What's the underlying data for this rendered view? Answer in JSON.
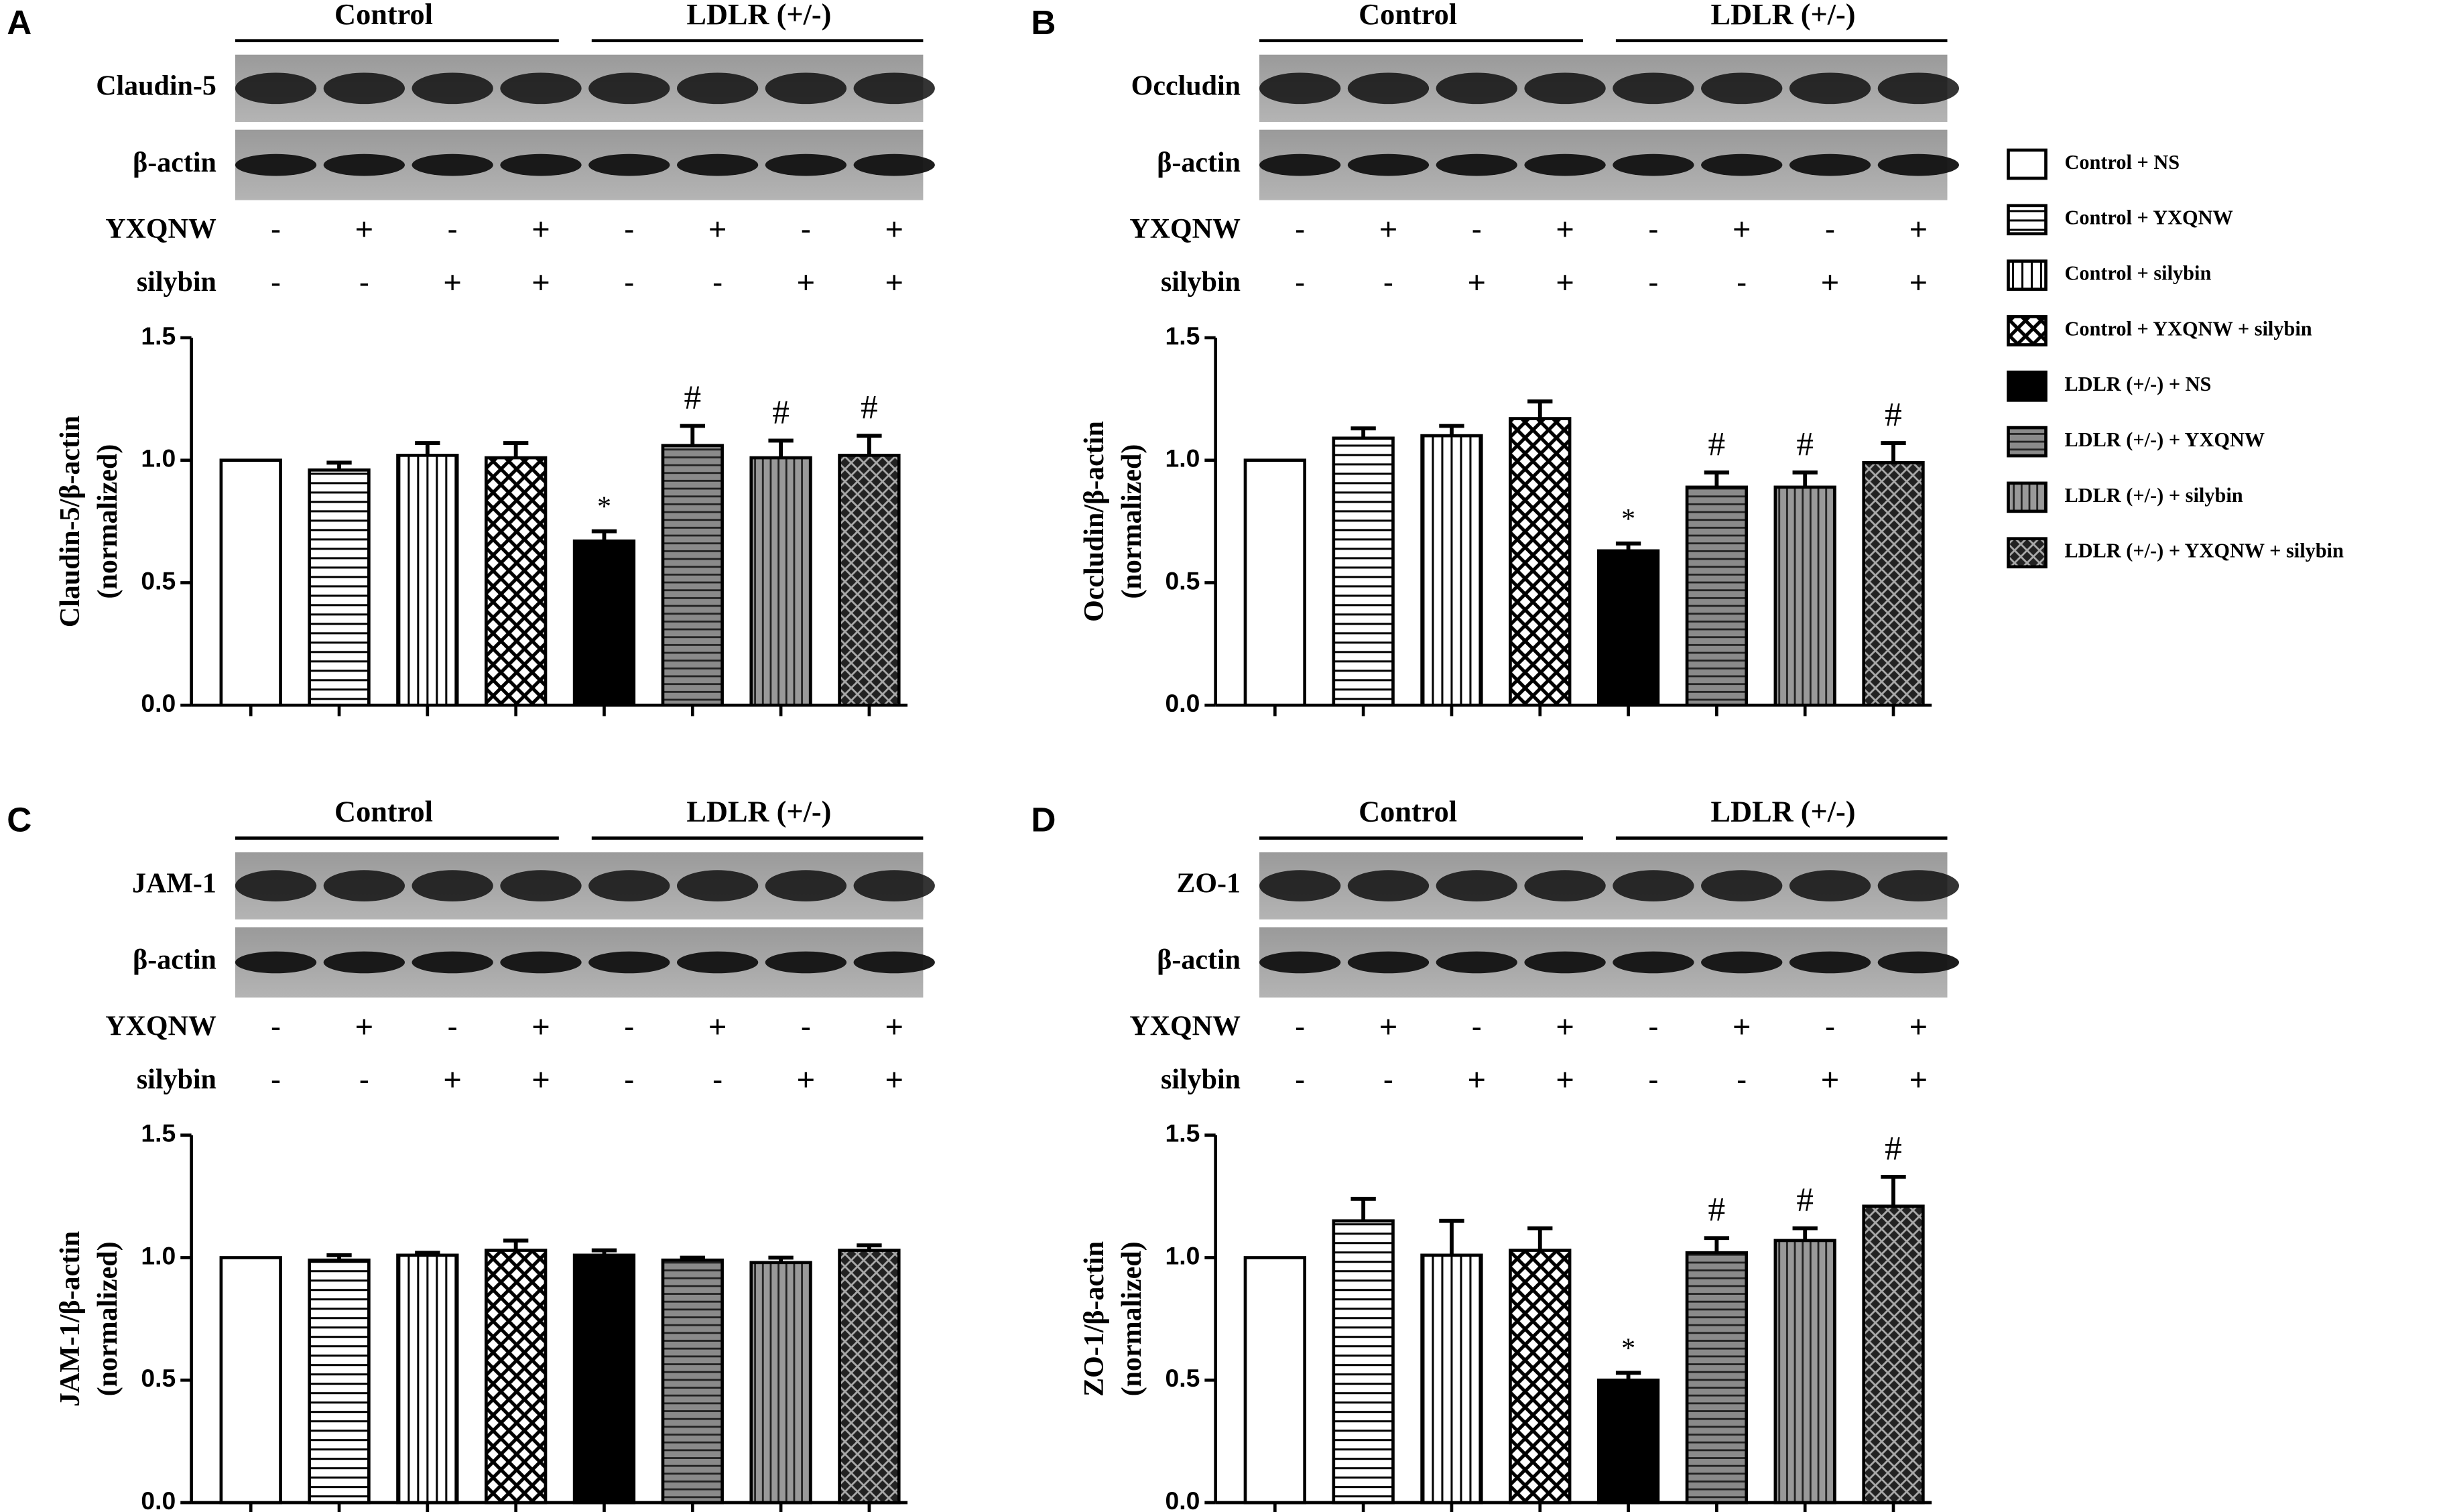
{
  "legend": [
    {
      "name": "Control + NS",
      "pattern": "white"
    },
    {
      "name": "Control + YXQNW",
      "pattern": "hlines"
    },
    {
      "name": "Control + silybin",
      "pattern": "vlines"
    },
    {
      "name": "Control + YXQNW + silybin",
      "pattern": "cross"
    },
    {
      "name": "LDLR (+/-) + NS",
      "pattern": "black"
    },
    {
      "name": "LDLR (+/-) + YXQNW",
      "pattern": "hlines-gray"
    },
    {
      "name": "LDLR (+/-) + silybin",
      "pattern": "vlines-gray"
    },
    {
      "name": "LDLR (+/-) + YXQNW + silybin",
      "pattern": "cross-dark"
    }
  ],
  "chart_data": [
    {
      "type": "bar",
      "panel": "A",
      "groups": [
        "Control",
        "LDLR (+/-)"
      ],
      "blot_labels": [
        "Claudin-5",
        "β-actin"
      ],
      "treatments": [
        {
          "name": "YXQNW",
          "signs": [
            "-",
            "+",
            "-",
            "+",
            "-",
            "+",
            "-",
            "+"
          ]
        },
        {
          "name": "silybin",
          "signs": [
            "-",
            "-",
            "+",
            "+",
            "-",
            "-",
            "+",
            "+"
          ]
        }
      ],
      "y_label": [
        "Claudin-5/β-actin",
        "(normalized)"
      ],
      "ylim": [
        0,
        1.5
      ],
      "yticks": [
        {
          "value": 0,
          "label": "0.0"
        },
        0.5,
        {
          "value": 1,
          "label": "1.0"
        },
        1.5
      ],
      "values": [
        1.0,
        0.96,
        1.02,
        1.01,
        0.67,
        1.06,
        1.01,
        1.02
      ],
      "errors": [
        0,
        0.03,
        0.05,
        0.06,
        0.04,
        0.08,
        0.07,
        0.08
      ],
      "markers": [
        null,
        null,
        null,
        null,
        "*",
        "#",
        "#",
        "#"
      ]
    },
    {
      "type": "bar",
      "panel": "B",
      "groups": [
        "Control",
        "LDLR (+/-)"
      ],
      "blot_labels": [
        "Occludin",
        "β-actin"
      ],
      "treatments": [
        {
          "name": "YXQNW",
          "signs": [
            "-",
            "+",
            "-",
            "+",
            "-",
            "+",
            "-",
            "+"
          ]
        },
        {
          "name": "silybin",
          "signs": [
            "-",
            "-",
            "+",
            "+",
            "-",
            "-",
            "+",
            "+"
          ]
        }
      ],
      "y_label": [
        "Occludin/β-actin",
        "(normalized)"
      ],
      "ylim": [
        0,
        1.5
      ],
      "yticks": [
        {
          "value": 0,
          "label": "0.0"
        },
        0.5,
        {
          "value": 1,
          "label": "1.0"
        },
        1.5
      ],
      "values": [
        1.0,
        1.09,
        1.1,
        1.17,
        0.63,
        0.89,
        0.89,
        0.99
      ],
      "errors": [
        0,
        0.04,
        0.04,
        0.07,
        0.03,
        0.06,
        0.06,
        0.08
      ],
      "markers": [
        null,
        null,
        null,
        null,
        "*",
        "#",
        "#",
        "#"
      ]
    },
    {
      "type": "bar",
      "panel": "C",
      "groups": [
        "Control",
        "LDLR (+/-)"
      ],
      "blot_labels": [
        "JAM-1",
        "β-actin"
      ],
      "treatments": [
        {
          "name": "YXQNW",
          "signs": [
            "-",
            "+",
            "-",
            "+",
            "-",
            "+",
            "-",
            "+"
          ]
        },
        {
          "name": "silybin",
          "signs": [
            "-",
            "-",
            "+",
            "+",
            "-",
            "-",
            "+",
            "+"
          ]
        }
      ],
      "y_label": [
        "JAM-1/β-actin",
        "(normalized)"
      ],
      "ylim": [
        0,
        1.5
      ],
      "yticks": [
        {
          "value": 0,
          "label": "0.0"
        },
        0.5,
        {
          "value": 1,
          "label": "1.0"
        },
        1.5
      ],
      "values": [
        1.0,
        0.99,
        1.01,
        1.03,
        1.01,
        0.99,
        0.98,
        1.03
      ],
      "errors": [
        0,
        0.02,
        0.01,
        0.04,
        0.02,
        0.01,
        0.02,
        0.02
      ],
      "markers": [
        null,
        null,
        null,
        null,
        null,
        null,
        null,
        null
      ]
    },
    {
      "type": "bar",
      "panel": "D",
      "groups": [
        "Control",
        "LDLR (+/-)"
      ],
      "blot_labels": [
        "ZO-1",
        "β-actin"
      ],
      "treatments": [
        {
          "name": "YXQNW",
          "signs": [
            "-",
            "+",
            "-",
            "+",
            "-",
            "+",
            "-",
            "+"
          ]
        },
        {
          "name": "silybin",
          "signs": [
            "-",
            "-",
            "+",
            "+",
            "-",
            "-",
            "+",
            "+"
          ]
        }
      ],
      "y_label": [
        "ZO-1/β-actin",
        "(normalized)"
      ],
      "ylim": [
        0,
        1.5
      ],
      "yticks": [
        {
          "value": 0,
          "label": "0.0"
        },
        0.5,
        {
          "value": 1,
          "label": "1.0"
        },
        1.5
      ],
      "values": [
        1.0,
        1.15,
        1.01,
        1.03,
        0.5,
        1.02,
        1.07,
        1.21
      ],
      "errors": [
        0,
        0.09,
        0.14,
        0.09,
        0.03,
        0.06,
        0.05,
        0.12
      ],
      "markers": [
        null,
        null,
        null,
        null,
        "*",
        "#",
        "#",
        "#"
      ]
    }
  ]
}
